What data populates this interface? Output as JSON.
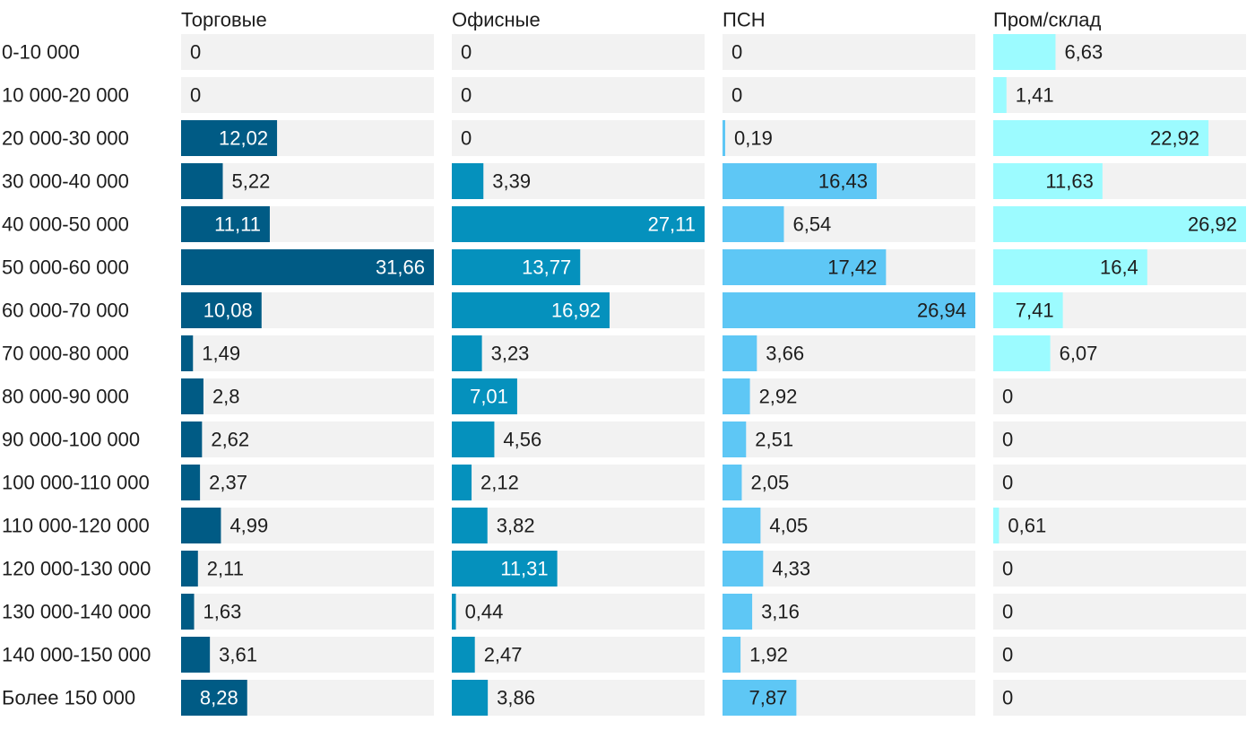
{
  "chart_data": {
    "type": "bar",
    "orientation": "horizontal",
    "layout": "small-multiples",
    "title": "",
    "xlabel": "",
    "ylabel": "",
    "categories": [
      "0-10 000",
      "10 000-20 000",
      "20 000-30 000",
      "30 000-40 000",
      "40 000-50 000",
      "50 000-60 000",
      "60 000-70 000",
      "70 000-80 000",
      "80 000-90 000",
      "90 000-100 000",
      "100 000-110 000",
      "110 000-120 000",
      "120 000-130 000",
      "130 000-140 000",
      "140 000-150 000",
      "Более 150 000"
    ],
    "series": [
      {
        "name": "Торговые",
        "color": "#005b85",
        "label_color_inside": "#ffffff",
        "xlim": [
          0,
          31.66
        ],
        "values": [
          0,
          0,
          12.02,
          5.22,
          11.11,
          31.66,
          10.08,
          1.49,
          2.8,
          2.62,
          2.37,
          4.99,
          2.11,
          1.63,
          3.61,
          8.28
        ],
        "labels": [
          "0",
          "0",
          "12,02",
          "5,22",
          "11,11",
          "31,66",
          "10,08",
          "1,49",
          "2,8",
          "2,62",
          "2,37",
          "4,99",
          "2,11",
          "1,63",
          "3,61",
          "8,28"
        ]
      },
      {
        "name": "Офисные",
        "color": "#0591bd",
        "label_color_inside": "#ffffff",
        "xlim": [
          0,
          27.11
        ],
        "values": [
          0,
          0,
          0,
          3.39,
          27.11,
          13.77,
          16.92,
          3.23,
          7.01,
          4.56,
          2.12,
          3.82,
          11.31,
          0.44,
          2.47,
          3.86
        ],
        "labels": [
          "0",
          "0",
          "0",
          "3,39",
          "27,11",
          "13,77",
          "16,92",
          "3,23",
          "7,01",
          "4,56",
          "2,12",
          "3,82",
          "11,31",
          "0,44",
          "2,47",
          "3,86"
        ]
      },
      {
        "name": "ПСН",
        "color": "#5ec7f5",
        "label_color_inside": "#1d1d1d",
        "xlim": [
          0,
          26.94
        ],
        "values": [
          0,
          0,
          0.19,
          16.43,
          6.54,
          17.42,
          26.94,
          3.66,
          2.92,
          2.51,
          2.05,
          4.05,
          4.33,
          3.16,
          1.92,
          7.87
        ],
        "labels": [
          "0",
          "0",
          "0,19",
          "16,43",
          "6,54",
          "17,42",
          "26,94",
          "3,66",
          "2,92",
          "2,51",
          "2,05",
          "4,05",
          "4,33",
          "3,16",
          "1,92",
          "7,87"
        ]
      },
      {
        "name": "Пром/склад",
        "color": "#9cfbff",
        "label_color_inside": "#1d1d1d",
        "xlim": [
          0,
          26.92
        ],
        "values": [
          6.63,
          1.41,
          22.92,
          11.63,
          26.92,
          16.4,
          7.41,
          6.07,
          0,
          0,
          0,
          0.61,
          0,
          0,
          0,
          0
        ],
        "labels": [
          "6,63",
          "1,41",
          "22,92",
          "11,63",
          "26,92",
          "16,4",
          "7,41",
          "6,07",
          "0",
          "0",
          "0",
          "0,61",
          "0",
          "0",
          "0",
          "0"
        ]
      }
    ],
    "track_color": "#f2f2f2",
    "text_color": "#1d1d1d"
  }
}
